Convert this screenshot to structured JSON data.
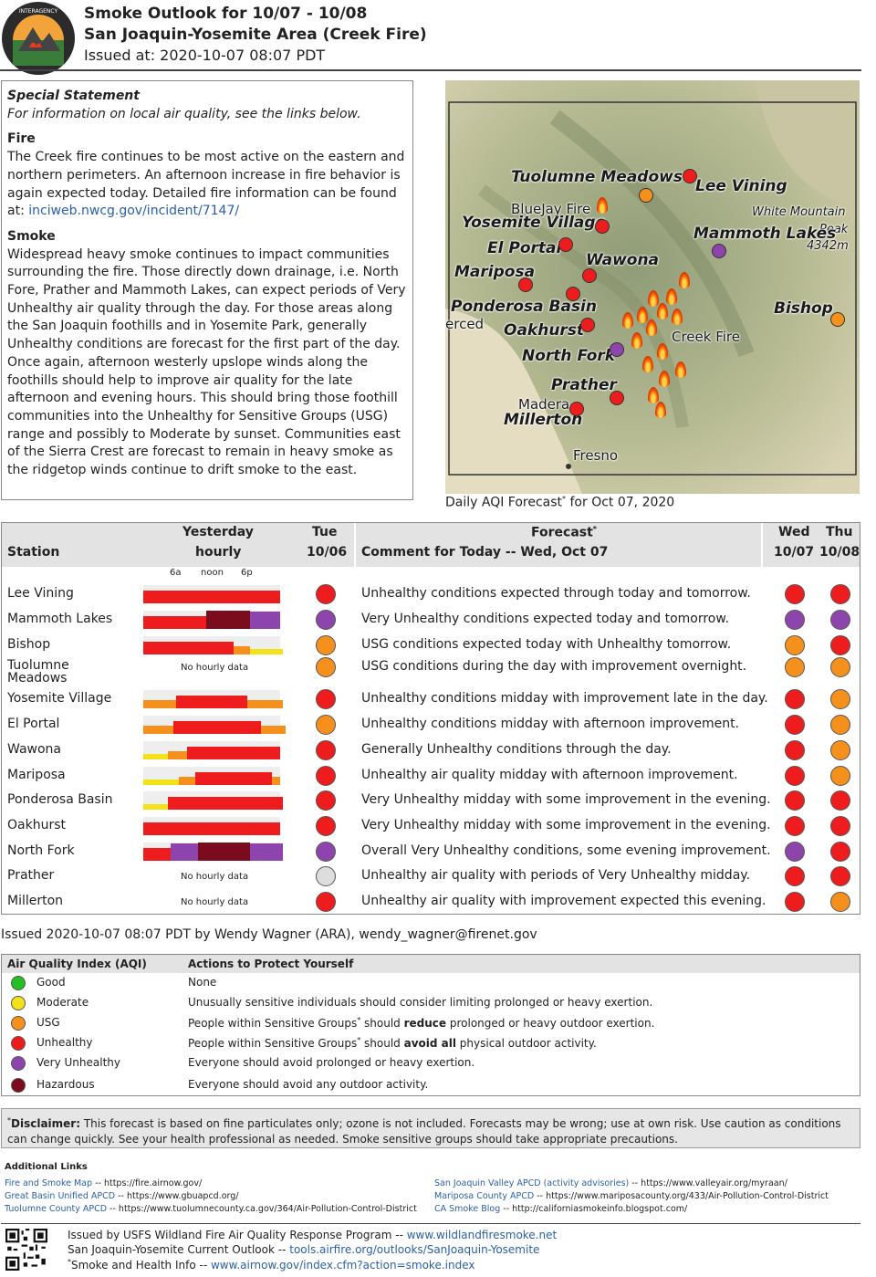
{
  "header": {
    "title": "Smoke Outlook for 10/07 - 10/08",
    "subtitle": "San Joaquin-Yosemite Area (Creek Fire)",
    "issued": "Issued at: 2020-10-07 08:07 PDT",
    "logo_text": "INTERAGENCY WILDLAND FIRE AIR QUALITY RESPONSE PROGRAM"
  },
  "statement": {
    "heading": "Special Statement",
    "intro": "For information on local air quality, see the links below.",
    "fire_title": "Fire",
    "fire_text": "The Creek fire continues to be most active on the eastern and northern perimeters. An afternoon increase in fire behavior is again expected today. Detailed fire information can be found at:",
    "fire_link": "inciweb.nwcg.gov/incident/7147/",
    "smoke_title": "Smoke",
    "smoke_text": "Widespread heavy smoke continues to impact communities surrounding the fire. Those directly down drainage, i.e. North Fore, Prather and Mammoth Lakes, can expect periods of Very Unhealthy air quality through the day. For those areas along the San Joaquin foothills and in Yosemite Park, generally Unhealthy conditions are forecast for the first part of the day. Once again, afternoon westerly upslope winds along the foothills should help to improve air quality for the late afternoon and evening hours. This should bring those foothill communities into the Unhealthy for Sensitive Groups (USG) range and possibly to Moderate by sunset. Communities east of the Sierra Crest are forecast to remain in heavy smoke as the ridgetop winds continue to drift smoke to the east."
  },
  "map": {
    "caption_pre": "Daily AQI Forecast",
    "caption_sup": "*",
    "caption_post": " for Oct 07, 2020",
    "labels": {
      "tuolumne": "Tuolumne Meadows",
      "lee": "Lee Vining",
      "bluejay": "BlueJay Fire",
      "yosemite": "Yosemite Village",
      "white": "White Mountain",
      "peak": "Peak",
      "elev": "4342m",
      "mammoth": "Mammoth Lakes",
      "elportal": "El Portal",
      "wawona": "Wawona",
      "mariposa": "Mariposa",
      "ponderosa": "Ponderosa Basin",
      "merced": "erced",
      "bishop": "Bishop",
      "oakhurst": "Oakhurst",
      "creekfire": "Creek Fire",
      "northfork": "North Fork",
      "prather": "Prather",
      "madera": "Madera",
      "millerton": "Millerton",
      "fresno": "Fresno"
    }
  },
  "colors": {
    "good": "#22c022",
    "moderate": "#f3e21a",
    "usg": "#f5901d",
    "unhealthy": "#ee1c1c",
    "very_unhealthy": "#8e44ad",
    "hazardous": "#7a0c1e",
    "none": "#dddddd"
  },
  "table": {
    "headers": {
      "station": "Station",
      "yesterday": "Yesterday",
      "hourly": "hourly",
      "tue": "Tue",
      "tue_date": "10/06",
      "forecast": "Forecast",
      "forecast_sup": "*",
      "comment": "Comment for Today -- Wed, Oct 07",
      "wed": "Wed",
      "wed_date": "10/07",
      "thu": "Thu",
      "thu_date": "10/08"
    },
    "ticks": [
      "6a",
      "noon",
      "6p"
    ],
    "no_hourly": "No hourly data",
    "rows": [
      {
        "station": "Lee Vining",
        "tue": "unhealthy",
        "wed": "unhealthy",
        "thu": "unhealthy",
        "comment": "Unhealthy conditions expected through today and tomorrow.",
        "hourly": "rrrrrrrrrrrrrrrrrrrrrrrrrrrrrrrrrrrrrrrrrrrrrrrrrr"
      },
      {
        "station": "Mammoth Lakes",
        "tue": "very_unhealthy",
        "wed": "very_unhealthy",
        "thu": "very_unhealthy",
        "comment": "Very Unhealthy conditions expected today and tomorrow.",
        "hourly": "rrrrrrrrrrrrrrrrrrrrrrrhhhhhhhhhhhhhhhhvvvvvvvvvvv"
      },
      {
        "station": "Bishop",
        "tue": "usg",
        "wed": "usg",
        "thu": "unhealthy",
        "comment": "USG conditions expected today with Unhealthy tomorrow.",
        "hourly": "rrrrrrrrrrrrrrrrrrrrrrrrrrrrrrrrrooooooyyyyyyyyyyyy"
      },
      {
        "station": "Tuolumne Meadows",
        "tue": "usg",
        "wed": "usg",
        "thu": "usg",
        "comment": "USG conditions during the day with improvement overnight.",
        "hourly": ""
      },
      {
        "station": "Yosemite Village",
        "tue": "unhealthy",
        "wed": "unhealthy",
        "thu": "usg",
        "comment": "Unhealthy conditions midday with improvement late in the day.",
        "hourly": "oooooooooooorrrrrrrrrrrrrrrrrrrrrrrrrrooooooooooooo"
      },
      {
        "station": "El Portal",
        "tue": "usg",
        "wed": "unhealthy",
        "thu": "usg",
        "comment": "Unhealthy conditions midday with afternoon improvement.",
        "hourly": "ooooooooooorrrrrrrrrrrrrrrrrrrrrrrrrrrrrrrrooooooooo"
      },
      {
        "station": "Wawona",
        "tue": "unhealthy",
        "wed": "unhealthy",
        "thu": "usg",
        "comment": "Generally Unhealthy conditions through the day.",
        "hourly": "yyyyyyyyyooooooorrrrrrrrrrrrrrrrrrrrrrrrrrrrrrrrrr"
      },
      {
        "station": "Mariposa",
        "tue": "unhealthy",
        "wed": "unhealthy",
        "thu": "usg",
        "comment": "Unhealthy air quality midday with afternoon improvement.",
        "hourly": "yyyyyyyyyyyyyoooooorrrrrrrrrrrrrrrrrrrrrrrrrrrrooo"
      },
      {
        "station": "Ponderosa Basin",
        "tue": "unhealthy",
        "wed": "unhealthy",
        "thu": "unhealthy",
        "comment": "Very Unhealthy midday with some improvement in the evening.",
        "hourly": "yyyyyyyyyrrrrrrrrrrrrrrrrrrrrrrrrrrrrrrrrrrrrrrrrrr"
      },
      {
        "station": "Oakhurst",
        "tue": "unhealthy",
        "wed": "unhealthy",
        "thu": "unhealthy",
        "comment": "Very Unhealthy midday with some improvement in the evening.",
        "hourly": "rrrrrrrrrrrrrrrrrrrrrrrrrrrrrrrrrrrrrrrrrrrrrrrrrr"
      },
      {
        "station": "North Fork",
        "tue": "very_unhealthy",
        "wed": "very_unhealthy",
        "thu": "unhealthy",
        "comment": "Overall Very Unhealthy conditions, some evening improvement.",
        "hourly": "rrrrrrrrrrvvvvvvvvvvhhhhhhhhhhhhhhhhhhhvvvvvvvvvvvv"
      },
      {
        "station": "Prather",
        "tue": "none",
        "wed": "unhealthy",
        "thu": "unhealthy",
        "comment": "Unhealthy air quality with periods of Very Unhealthy midday.",
        "hourly": ""
      },
      {
        "station": "Millerton",
        "tue": "unhealthy",
        "wed": "unhealthy",
        "thu": "usg",
        "comment": "Unhealthy air quality with improvement expected this evening.",
        "hourly": ""
      }
    ]
  },
  "issued_by": "Issued 2020-10-07 08:07 PDT by Wendy Wagner (ARA), wendy_wagner@firenet.gov",
  "aqi": {
    "col1": "Air Quality Index (AQI)",
    "col2": "Actions to Protect Yourself",
    "rows": [
      {
        "key": "good",
        "name": "Good",
        "action": "None"
      },
      {
        "key": "moderate",
        "name": "Moderate",
        "action": "Unusually sensitive individuals should consider limiting prolonged or heavy exertion."
      },
      {
        "key": "usg",
        "name": "USG",
        "action_pre": "People within Sensitive Groups",
        "action_sup": "*",
        "action_mid": " should ",
        "action_bold": "reduce",
        "action_post": " prolonged or heavy outdoor exertion."
      },
      {
        "key": "unhealthy",
        "name": "Unhealthy",
        "action_pre": "People within Sensitive Groups",
        "action_sup": "*",
        "action_mid": " should ",
        "action_bold": "avoid all",
        "action_post": " physical outdoor activity."
      },
      {
        "key": "very_unhealthy",
        "name": "Very Unhealthy",
        "action": "Everyone should avoid prolonged or heavy exertion."
      },
      {
        "key": "hazardous",
        "name": "Hazardous",
        "action": "Everyone should avoid any outdoor activity."
      }
    ]
  },
  "disclaimer": {
    "sup": "*",
    "label": "Disclaimer:",
    "text": " This forecast is based on fine particulates only; ozone is not included. Forecasts may be wrong; use at own risk. Use caution as conditions can change quickly. See your health professional as needed. Smoke sensitive groups should take appropriate precautions."
  },
  "links": {
    "title": "Additional Links",
    "left": [
      {
        "name": "Fire and Smoke Map",
        "url": " -- https://fire.airnow.gov/"
      },
      {
        "name": "Great Basin Unified APCD",
        "url": " -- https://www.gbuapcd.org/"
      },
      {
        "name": "Tuolumne County APCD",
        "url": " -- https://www.tuolumnecounty.ca.gov/364/Air-Pollution-Control-District"
      }
    ],
    "right": [
      {
        "name": "San Joaquin Valley APCD (activity advisories)",
        "url": " -- https://www.valleyair.org/myraan/"
      },
      {
        "name": "Mariposa County APCD",
        "url": " -- https://www.mariposacounty.org/433/Air-Pollution-Control-District"
      },
      {
        "name": "CA Smoke Blog",
        "url": " -- http://californiasmokeinfo.blogspot.com/"
      }
    ]
  },
  "footer": {
    "line1_pre": "Issued by USFS Wildland Fire Air Quality Response Program -- ",
    "line1_link": "www.wildlandfiresmoke.net",
    "line2_pre": "San Joaquin-Yosemite Current Outlook -- ",
    "line2_link": "tools.airfire.org/outlooks/SanJoaquin-Yosemite",
    "line3_sup": "*",
    "line3_pre": "Smoke and Health Info -- ",
    "line3_link": "www.airnow.gov/index.cfm?action=smoke.index"
  }
}
